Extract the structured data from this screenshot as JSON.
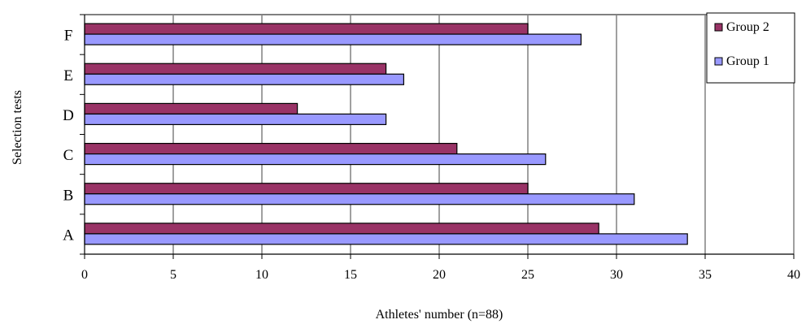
{
  "chart_data": {
    "type": "bar",
    "orientation": "horizontal",
    "categories": [
      "A",
      "B",
      "C",
      "D",
      "E",
      "F"
    ],
    "series": [
      {
        "name": "Group 2",
        "color": "#993366",
        "values": [
          29,
          25,
          21,
          12,
          17,
          25
        ]
      },
      {
        "name": "Group 1",
        "color": "#9999ff",
        "values": [
          34,
          31,
          26,
          17,
          18,
          28
        ]
      }
    ],
    "xlabel": "Athletes'  number (n=88)",
    "ylabel": "Selection tests",
    "xlim": [
      0,
      40
    ],
    "xticks": [
      0,
      5,
      10,
      15,
      20,
      25,
      30,
      35,
      40
    ],
    "grid": "vertical",
    "legend_position": "top-right"
  }
}
